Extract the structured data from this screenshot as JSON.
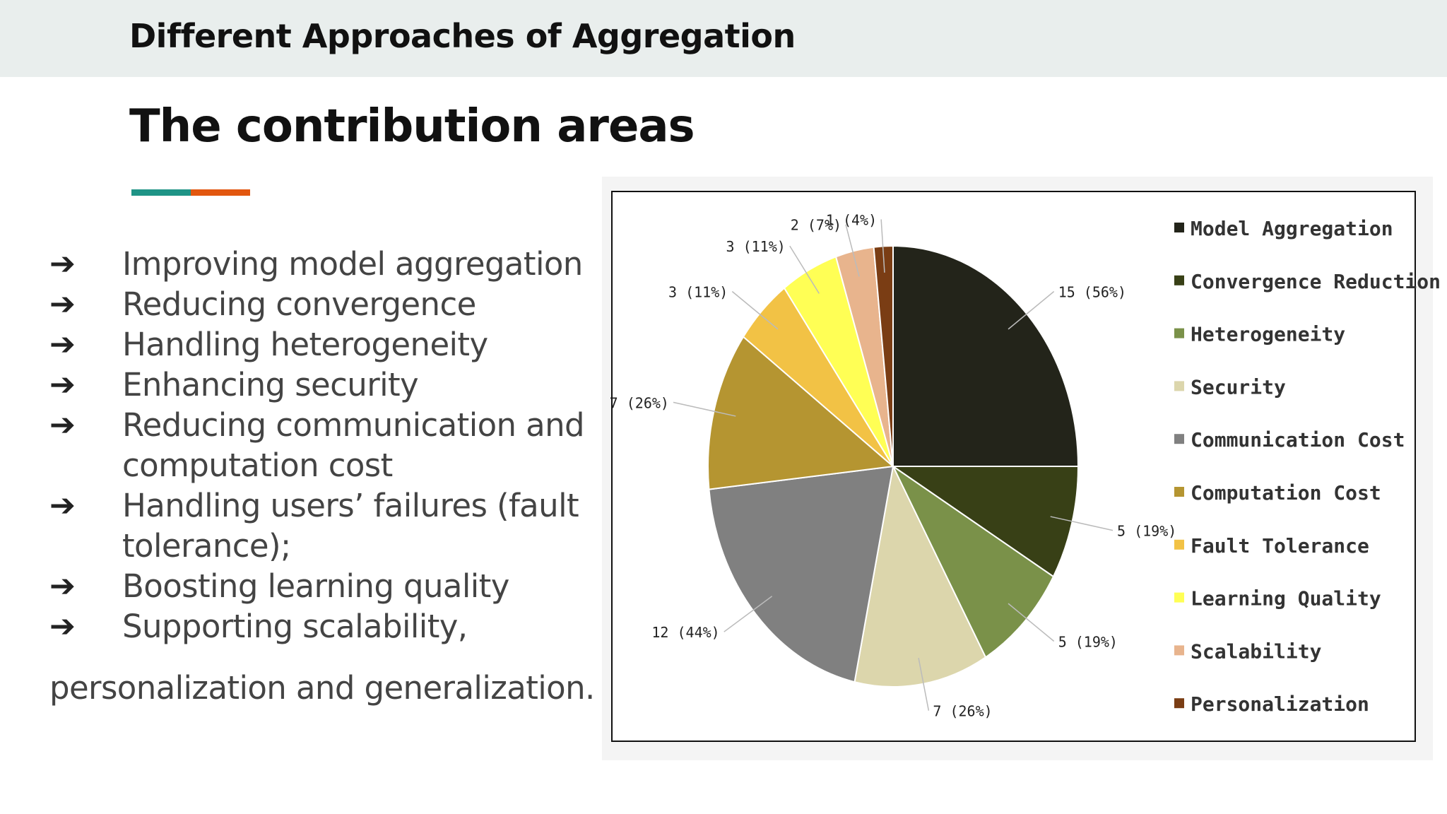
{
  "header": {
    "section_title": "Different Approaches of Aggregation"
  },
  "main": {
    "title": "The contribution areas",
    "accent_colors": [
      "#1f9486",
      "#e2570f"
    ],
    "bullet_symbol": "➔",
    "bullets": [
      "Improving model aggregation",
      "Reducing convergence",
      "Handling heterogeneity",
      "Enhancing security",
      "Reducing communication and computation cost",
      "Handling users’ failures (fault tolerance);",
      "Boosting learning quality",
      "Supporting scalability,"
    ],
    "trailing_text": "personalization and generalization."
  },
  "chart_data": {
    "type": "pie",
    "title": "",
    "legend_position": "right",
    "slices": [
      {
        "label": "Model Aggregation",
        "value": 15,
        "display": "15 (56%)",
        "color": "#23241a"
      },
      {
        "label": "Convergence Reduction",
        "value": 5,
        "display": "5 (19%)",
        "color": "#384016"
      },
      {
        "label": "Heterogeneity",
        "value": 5,
        "display": "5 (19%)",
        "color": "#7a9149"
      },
      {
        "label": "Security",
        "value": 7,
        "display": "7 (26%)",
        "color": "#dcd6ac"
      },
      {
        "label": "Communication Cost",
        "value": 12,
        "display": "12 (44%)",
        "color": "#808080"
      },
      {
        "label": "Computation Cost",
        "value": 7,
        "display": "7 (26%)",
        "color": "#b59531"
      },
      {
        "label": "Fault Tolerance",
        "value": 3,
        "display": "3 (11%)",
        "color": "#f2c245"
      },
      {
        "label": "Learning Quality",
        "value": 3,
        "display": "3 (11%)",
        "color": "#ffff55"
      },
      {
        "label": "Scalability",
        "value": 2,
        "display": "2 (7%)",
        "color": "#e8b48d"
      },
      {
        "label": "Personalization",
        "value": 1,
        "display": "1 (4%)",
        "color": "#7a3d14"
      }
    ]
  }
}
